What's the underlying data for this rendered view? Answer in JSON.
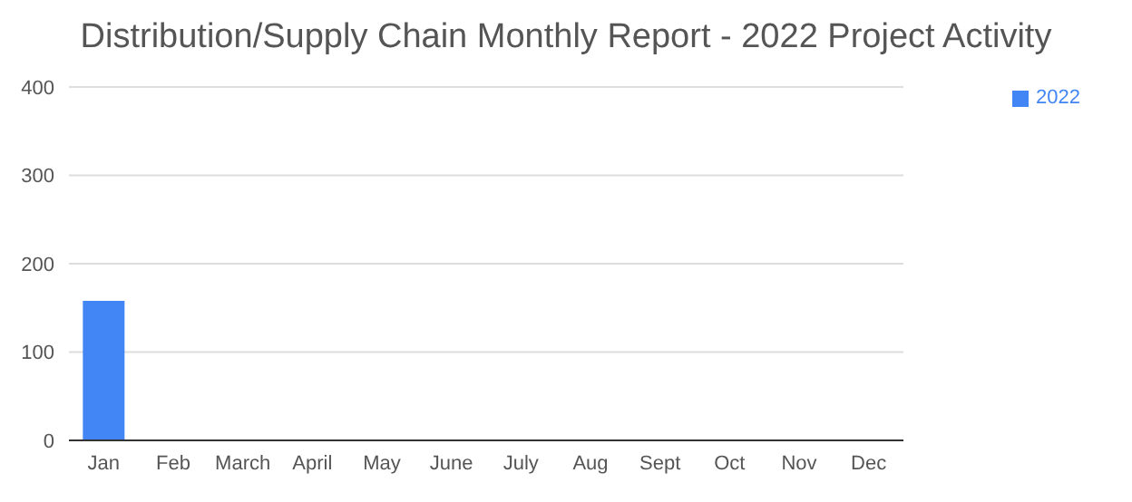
{
  "chart_data": {
    "type": "bar",
    "title": "Distribution/Supply Chain Monthly Report - 2022 Project Activity",
    "categories": [
      "Jan",
      "Feb",
      "March",
      "April",
      "May",
      "June",
      "July",
      "Aug",
      "Sept",
      "Oct",
      "Nov",
      "Dec"
    ],
    "series": [
      {
        "name": "2022",
        "color": "#4285f4",
        "values": [
          158,
          null,
          null,
          null,
          null,
          null,
          null,
          null,
          null,
          null,
          null,
          null
        ]
      }
    ],
    "ylim": [
      0,
      400
    ],
    "yticks": [
      0,
      100,
      200,
      300,
      400
    ],
    "grid": "y",
    "legend": "top right"
  }
}
